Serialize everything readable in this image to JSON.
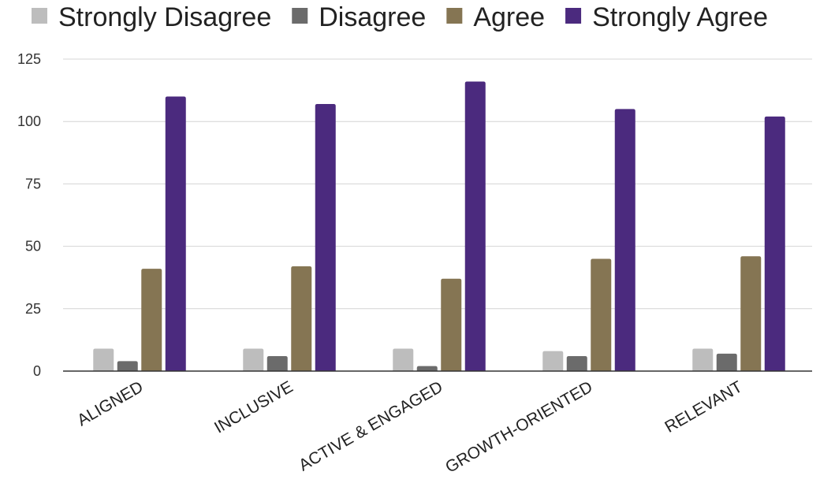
{
  "chart_data": {
    "type": "bar",
    "title": "",
    "xlabel": "",
    "ylabel": "",
    "categories": [
      "ALIGNED",
      "INCLUSIVE",
      "ACTIVE & ENGAGED",
      "GROWTH-ORIENTED",
      "RELEVANT"
    ],
    "series": [
      {
        "name": "Strongly Disagree",
        "color": "#bdbdbd",
        "values": [
          9,
          9,
          9,
          8,
          9
        ]
      },
      {
        "name": "Disagree",
        "color": "#6b6b6b",
        "values": [
          4,
          6,
          2,
          6,
          7
        ]
      },
      {
        "name": "Agree",
        "color": "#857553",
        "values": [
          41,
          42,
          37,
          45,
          46
        ]
      },
      {
        "name": "Strongly Agree",
        "color": "#4b2a7e",
        "values": [
          110,
          107,
          116,
          105,
          102
        ]
      }
    ],
    "ylim": [
      0,
      125
    ],
    "yticks": [
      0,
      25,
      50,
      75,
      100,
      125
    ],
    "grid": true,
    "legend_position": "top"
  }
}
